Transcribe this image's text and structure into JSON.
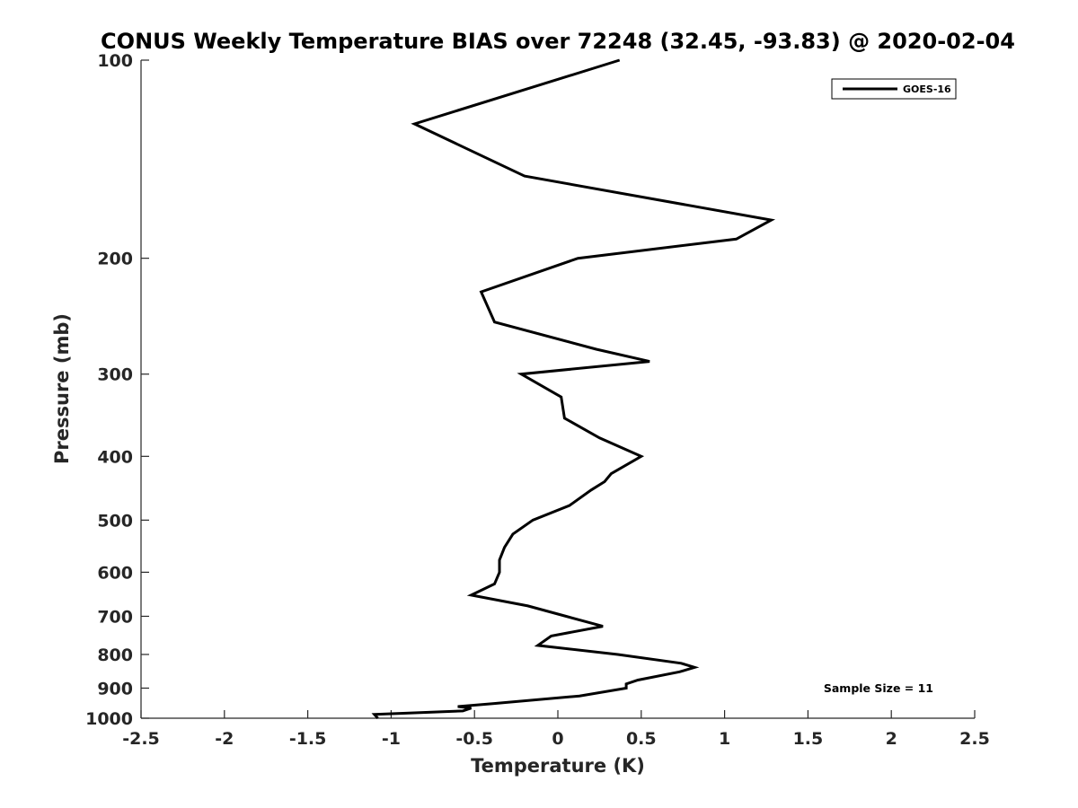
{
  "chart_data": {
    "type": "line",
    "title": "CONUS Weekly Temperature BIAS over 72248 (32.45, -93.83) @ 2020-02-04",
    "xlabel": "Temperature (K)",
    "ylabel": "Pressure (mb)",
    "xlim": [
      -2.5,
      2.5
    ],
    "ylim": [
      100,
      1000
    ],
    "y_scale": "log",
    "y_reversed": true,
    "grid": false,
    "legend_position": "top-right",
    "x_ticks": [
      -2.5,
      -2,
      -1.5,
      -1,
      -0.5,
      0,
      0.5,
      1,
      1.5,
      2,
      2.5
    ],
    "x_tick_labels": [
      "-2.5",
      "-2",
      "-1.5",
      "-1",
      "-0.5",
      "0",
      "0.5",
      "1",
      "1.5",
      "2",
      "2.5"
    ],
    "y_ticks": [
      100,
      200,
      300,
      400,
      500,
      600,
      700,
      800,
      900,
      1000
    ],
    "y_tick_labels": [
      "100",
      "200",
      "300",
      "400",
      "500",
      "600",
      "700",
      "800",
      "900",
      "1000"
    ],
    "series": [
      {
        "name": "GOES-16",
        "color": "#000000",
        "points": [
          {
            "x": 0.37,
            "y": 100
          },
          {
            "x": -0.86,
            "y": 125
          },
          {
            "x": -0.2,
            "y": 150
          },
          {
            "x": 1.28,
            "y": 175
          },
          {
            "x": 1.07,
            "y": 187
          },
          {
            "x": 0.12,
            "y": 200
          },
          {
            "x": -0.46,
            "y": 225
          },
          {
            "x": -0.38,
            "y": 250
          },
          {
            "x": 0.23,
            "y": 275
          },
          {
            "x": 0.55,
            "y": 287
          },
          {
            "x": -0.22,
            "y": 300
          },
          {
            "x": 0.02,
            "y": 325
          },
          {
            "x": 0.04,
            "y": 350
          },
          {
            "x": 0.25,
            "y": 375
          },
          {
            "x": 0.5,
            "y": 400
          },
          {
            "x": 0.32,
            "y": 425
          },
          {
            "x": 0.28,
            "y": 437
          },
          {
            "x": 0.2,
            "y": 450
          },
          {
            "x": 0.07,
            "y": 475
          },
          {
            "x": -0.15,
            "y": 500
          },
          {
            "x": -0.27,
            "y": 525
          },
          {
            "x": -0.32,
            "y": 550
          },
          {
            "x": -0.35,
            "y": 575
          },
          {
            "x": -0.35,
            "y": 600
          },
          {
            "x": -0.38,
            "y": 625
          },
          {
            "x": -0.52,
            "y": 650
          },
          {
            "x": -0.18,
            "y": 675
          },
          {
            "x": 0.05,
            "y": 700
          },
          {
            "x": 0.27,
            "y": 725
          },
          {
            "x": -0.04,
            "y": 750
          },
          {
            "x": -0.12,
            "y": 775
          },
          {
            "x": 0.36,
            "y": 800
          },
          {
            "x": 0.74,
            "y": 825
          },
          {
            "x": 0.82,
            "y": 837
          },
          {
            "x": 0.73,
            "y": 850
          },
          {
            "x": 0.48,
            "y": 875
          },
          {
            "x": 0.41,
            "y": 887
          },
          {
            "x": 0.41,
            "y": 900
          },
          {
            "x": 0.13,
            "y": 925
          },
          {
            "x": -0.39,
            "y": 950
          },
          {
            "x": -0.6,
            "y": 960
          },
          {
            "x": -0.52,
            "y": 965
          },
          {
            "x": -0.57,
            "y": 975
          },
          {
            "x": -1.1,
            "y": 987
          },
          {
            "x": -1.08,
            "y": 1000
          }
        ]
      }
    ],
    "legend": [
      {
        "label": "GOES-16",
        "color": "#000000"
      }
    ],
    "annotations": [
      {
        "text": "Sample Size = 11",
        "position": "bottom-right"
      }
    ]
  }
}
